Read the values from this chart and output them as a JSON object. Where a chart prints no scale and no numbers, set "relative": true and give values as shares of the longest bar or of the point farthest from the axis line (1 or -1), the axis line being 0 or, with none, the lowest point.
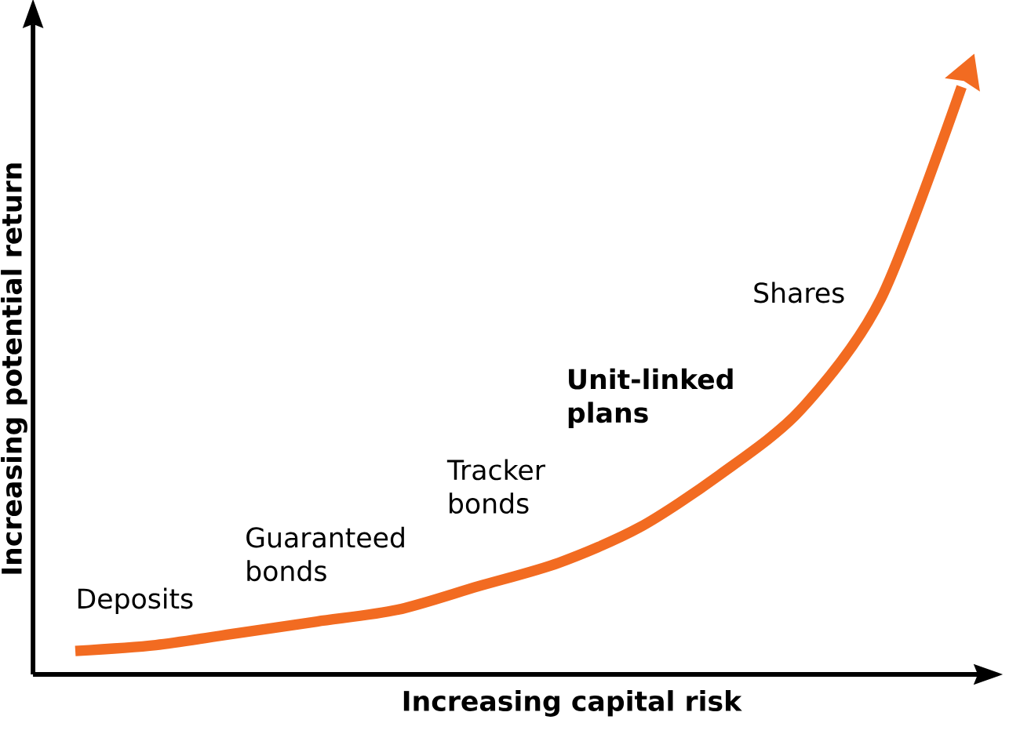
{
  "chart_data": {
    "type": "line",
    "relative": true,
    "xlabel": "Increasing capital risk",
    "ylabel": "Increasing potential return",
    "categories": [
      null,
      null,
      null,
      null,
      null,
      null,
      null,
      null,
      null,
      null,
      null,
      null
    ],
    "series": [
      {
        "color": "#f26b21",
        "values": [
          0.04,
          0.05,
          0.07,
          0.09,
          0.11,
          0.15,
          0.19,
          0.25,
          0.34,
          0.45,
          0.64,
          1.0
        ]
      }
    ],
    "marker": "none",
    "annotations": [
      "Deposits",
      "Guaranteed bonds",
      "Tracker bonds",
      "Unit-linked plans",
      "Shares"
    ]
  }
}
